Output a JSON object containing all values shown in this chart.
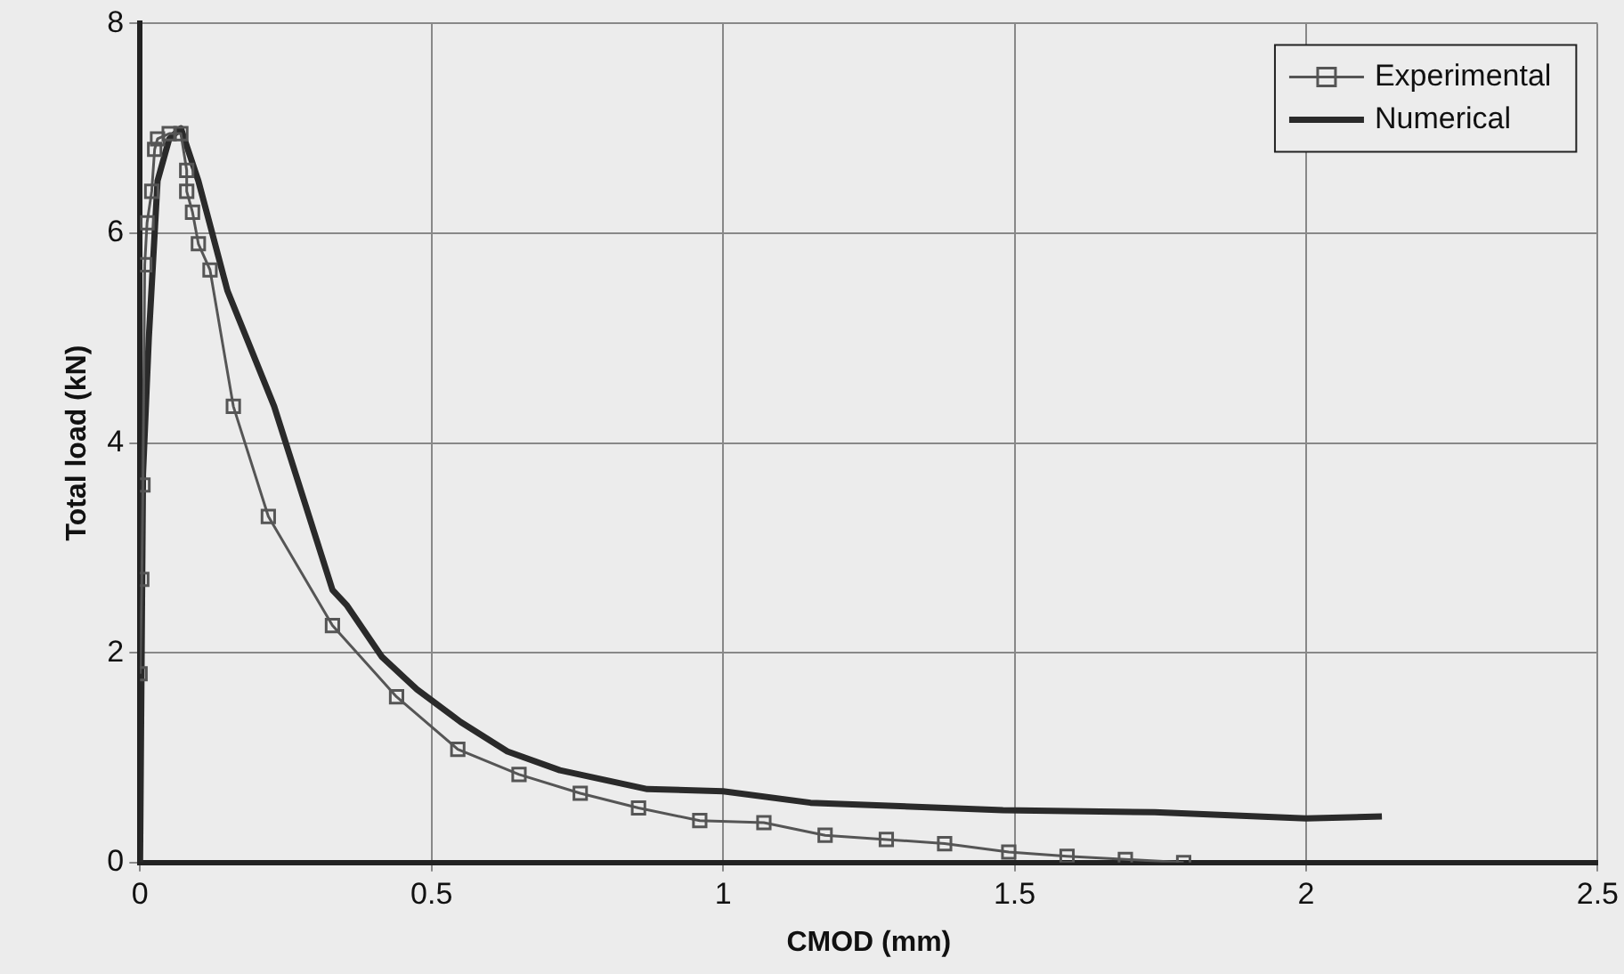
{
  "chart_data": {
    "type": "line",
    "xlabel": "CMOD (mm)",
    "ylabel": "Total load (kN)",
    "xlim": [
      0,
      2.5
    ],
    "xticks": [
      0,
      0.5,
      1,
      1.5,
      2,
      2.5
    ],
    "ylim": [
      0,
      8
    ],
    "yticks": [
      0,
      2,
      4,
      6,
      8
    ],
    "grid": true,
    "legend": "top right",
    "series": [
      {
        "name": "Experimental",
        "color": "#555555",
        "marker": "square",
        "x": [
          0,
          0.003,
          0.005,
          0.008,
          0.012,
          0.02,
          0.025,
          0.03,
          0.05,
          0.07,
          0.08,
          0.08,
          0.09,
          0.1,
          0.12,
          0.16,
          0.22,
          0.33,
          0.44,
          0.545,
          0.65,
          0.755,
          0.855,
          0.96,
          1.07,
          1.175,
          1.28,
          1.38,
          1.49,
          1.59,
          1.69,
          1.79
        ],
        "values": [
          1.8,
          2.7,
          3.6,
          5.7,
          6.1,
          6.4,
          6.8,
          6.9,
          6.95,
          6.95,
          6.6,
          6.4,
          6.2,
          5.9,
          5.65,
          4.35,
          3.3,
          2.26,
          1.58,
          1.08,
          0.84,
          0.66,
          0.52,
          0.4,
          0.38,
          0.26,
          0.22,
          0.18,
          0.1,
          0.06,
          0.03,
          0
        ]
      },
      {
        "name": "Numerical",
        "color": "#2a2a2a",
        "marker": "none",
        "x": [
          0,
          0.005,
          0.015,
          0.03,
          0.05,
          0.07,
          0.1,
          0.15,
          0.23,
          0.33,
          0.355,
          0.415,
          0.475,
          0.55,
          0.63,
          0.72,
          0.87,
          1.0,
          1.15,
          1.48,
          1.74,
          2.0,
          2.13
        ],
        "values": [
          0,
          3.7,
          5.0,
          6.5,
          6.9,
          7.0,
          6.5,
          5.45,
          4.35,
          2.6,
          2.45,
          1.96,
          1.65,
          1.34,
          1.06,
          0.88,
          0.7,
          0.68,
          0.57,
          0.5,
          0.48,
          0.42,
          0.44
        ]
      }
    ]
  }
}
